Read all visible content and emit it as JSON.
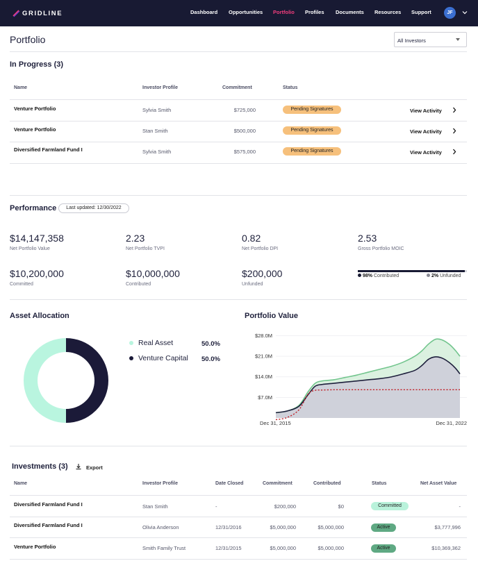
{
  "nav": {
    "brand": "GRIDLINE",
    "links": [
      "Dashboard",
      "Opportunities",
      "Portfolio",
      "Profiles",
      "Documents",
      "Resources",
      "Support"
    ],
    "active": "Portfolio",
    "avatar_initials": "JF"
  },
  "page": {
    "title": "Portfolio",
    "investor_filter": "All Investors"
  },
  "in_progress": {
    "title": "In Progress (3)",
    "columns": [
      "Name",
      "Investor Profile",
      "Commitment",
      "Status"
    ],
    "action_label": "View Activity",
    "rows": [
      {
        "name": "Venture Portfolio",
        "investor": "Sylvia Smith",
        "commitment": "$725,000",
        "status": "Pending Signatures"
      },
      {
        "name": "Venture Portfolio",
        "investor": "Stan Smith",
        "commitment": "$500,000",
        "status": "Pending Signatures"
      },
      {
        "name": "Diversified Farmland Fund I",
        "investor": "Sylvia Smith",
        "commitment": "$575,000",
        "status": "Pending Signatures"
      }
    ]
  },
  "performance": {
    "title": "Performance",
    "last_updated": "Last updated: 12/30/2022",
    "metrics": [
      {
        "value": "$14,147,358",
        "label": "Net Portfolio Value"
      },
      {
        "value": "2.23",
        "label": "Net Portfolio TVPI"
      },
      {
        "value": "0.82",
        "label": "Net Portfolio DPI"
      },
      {
        "value": "2.53",
        "label": "Gross Portfolio MOIC"
      },
      {
        "value": "$10,200,000",
        "label": "Committed"
      },
      {
        "value": "$10,000,000",
        "label": "Contributed"
      },
      {
        "value": "$200,000",
        "label": "Unfunded"
      }
    ],
    "contribution_bar": {
      "contributed_pct": 98,
      "contributed_pct_label": "98%",
      "contributed_label": "Contributed",
      "unfunded_pct_label": "2%",
      "unfunded_label": "Unfunded",
      "contributed_color": "#181a33",
      "unfunded_color": "#8a8b95"
    }
  },
  "asset_allocation": {
    "title": "Asset Allocation",
    "items": [
      {
        "name": "Real Asset",
        "pct_label": "50.0%",
        "value": 50.0,
        "color": "#b9f5df"
      },
      {
        "name": "Venture Capital",
        "pct_label": "50.0%",
        "value": 50.0,
        "color": "#1b1a38"
      }
    ]
  },
  "chart_data": {
    "type": "area",
    "title": "Portfolio Value",
    "x_labels": [
      "Dec 31, 2015",
      "Dec 31, 2022"
    ],
    "x": [
      2015.0,
      2015.5,
      2016.0,
      2016.4,
      2016.7,
      2017.0,
      2017.5,
      2018.0,
      2018.5,
      2019.0,
      2019.5,
      2020.0,
      2020.5,
      2021.0,
      2021.3,
      2021.6,
      2021.9,
      2022.2,
      2022.5,
      2022.75,
      2022.95
    ],
    "yticks": [
      7,
      14,
      21,
      28
    ],
    "ytick_labels": [
      "$7.0M",
      "$14.0M",
      "$21.0M",
      "$28.0M"
    ],
    "ylim": [
      0,
      30
    ],
    "xlim": [
      2015.0,
      2022.95
    ],
    "series": [
      {
        "values": [
          1.8,
          2.4,
          4.3,
          9.0,
          11.8,
          12.6,
          13.0,
          13.8,
          14.6,
          15.6,
          16.6,
          17.6,
          19.0,
          21.0,
          22.8,
          25.2,
          26.8,
          26.5,
          25.0,
          23.0,
          21.0
        ],
        "color": "#72c58d",
        "fill": "#d7efdd"
      },
      {
        "values": [
          1.8,
          2.4,
          4.0,
          8.0,
          10.8,
          11.4,
          11.8,
          12.2,
          12.6,
          13.0,
          13.4,
          14.0,
          15.0,
          16.2,
          17.8,
          20.0,
          20.8,
          20.3,
          18.8,
          17.0,
          15.0
        ],
        "color": "#1d1e3b",
        "fill": "#cdcbd8"
      },
      {
        "values": [
          -0.6,
          0.2,
          2.8,
          8.2,
          9.4,
          9.5,
          9.6,
          9.6,
          9.6,
          9.6,
          9.6,
          9.6,
          9.6,
          9.6,
          9.6,
          9.6,
          9.6,
          9.6,
          9.6,
          9.6,
          9.6
        ],
        "color": "#c0252d",
        "dashed": true
      }
    ]
  },
  "investments": {
    "title": "Investments (3)",
    "export_label": "Export",
    "columns": [
      "Name",
      "Investor Profile",
      "Date Closed",
      "Commitment",
      "Contributed",
      "Status",
      "Net Asset Value"
    ],
    "rows": [
      {
        "name": "Diversified Farmland Fund I",
        "investor": "Stan Smith",
        "date": "-",
        "commitment": "$200,000",
        "contributed": "$0",
        "status": "Committed",
        "nav": "-"
      },
      {
        "name": "Diversified Farmland Fund I",
        "investor": "Olivia Anderson",
        "date": "12/31/2016",
        "commitment": "$5,000,000",
        "contributed": "$5,000,000",
        "status": "Active",
        "nav": "$3,777,996"
      },
      {
        "name": "Venture Portfolio",
        "investor": "Smith Family Trust",
        "date": "12/31/2015",
        "commitment": "$5,000,000",
        "contributed": "$5,000,000",
        "status": "Active",
        "nav": "$10,369,362"
      }
    ]
  }
}
